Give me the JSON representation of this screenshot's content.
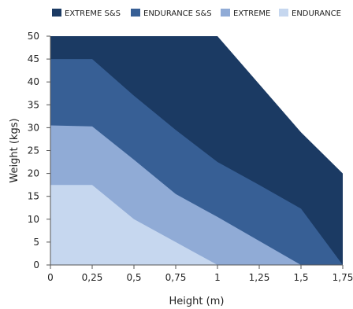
{
  "chart_data": {
    "type": "area",
    "xlabel": "Height (m)",
    "ylabel": "Weight  (kgs)",
    "x_ticks": [
      "0",
      "0,25",
      "0,5",
      "0,75",
      "1",
      "1,25",
      "1,5",
      "1,75"
    ],
    "y_ticks": [
      "0",
      "5",
      "10",
      "15",
      "20",
      "25",
      "30",
      "35",
      "40",
      "45",
      "50"
    ],
    "xlim": [
      0,
      1.75
    ],
    "ylim": [
      0,
      50
    ],
    "grid": false,
    "legend_position": "top",
    "series": [
      {
        "name": "EXTREME S&S",
        "color": "#1b3a63",
        "points": [
          [
            0,
            50
          ],
          [
            1,
            50
          ],
          [
            1.5,
            29
          ],
          [
            1.75,
            20
          ],
          [
            1.75,
            0
          ]
        ]
      },
      {
        "name": "ENDURANCE S&S",
        "color": "#375f95",
        "points": [
          [
            0,
            45
          ],
          [
            0.25,
            45
          ],
          [
            0.5,
            37
          ],
          [
            0.75,
            29.5
          ],
          [
            1,
            22.5
          ],
          [
            1.25,
            17.5
          ],
          [
            1.5,
            12.3
          ],
          [
            1.75,
            0
          ]
        ]
      },
      {
        "name": "EXTREME",
        "color": "#90abd6",
        "points": [
          [
            0,
            30.5
          ],
          [
            0.25,
            30.3
          ],
          [
            0.5,
            23
          ],
          [
            0.75,
            15.5
          ],
          [
            1,
            10.5
          ],
          [
            1.5,
            0
          ]
        ]
      },
      {
        "name": "ENDURANCE",
        "color": "#c6d7ef",
        "points": [
          [
            0,
            17.5
          ],
          [
            0.25,
            17.5
          ],
          [
            0.5,
            10
          ],
          [
            0.75,
            5
          ],
          [
            1,
            0
          ]
        ]
      }
    ]
  }
}
